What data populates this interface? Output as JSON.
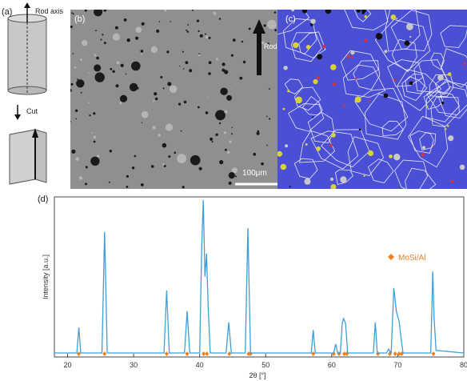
{
  "panels": {
    "a": {
      "label": "(a)",
      "rod_axis_label": "Rod axis",
      "cut_label": "Cut"
    },
    "b": {
      "label": "(b)",
      "rod_axis_label": "Rod axis",
      "scale_bar_label": "100μm"
    },
    "c": {
      "label": "(c)"
    },
    "d": {
      "label": "(d)"
    }
  },
  "chart_data": {
    "type": "line",
    "title": "",
    "xlabel": "2θ [°]",
    "ylabel": "Intensity [a.u.]",
    "xlim": [
      18,
      80
    ],
    "ylim": [
      0,
      100
    ],
    "xticks": [
      20,
      30,
      40,
      50,
      60,
      70,
      80
    ],
    "series": [
      {
        "name": "",
        "color": "#3d9ed8",
        "x": [
          18,
          21.4,
          21.7,
          22.0,
          25.2,
          25.6,
          26.0,
          34.6,
          35.0,
          35.4,
          37.7,
          38.1,
          38.5,
          40.0,
          40.3,
          40.55,
          40.8,
          41.05,
          41.3,
          41.6,
          44.0,
          44.4,
          44.8,
          46.9,
          47.3,
          47.7,
          56.9,
          57.2,
          57.5,
          60.3,
          60.6,
          60.9,
          61.3,
          61.6,
          61.8,
          62.1,
          62.4,
          66.3,
          66.6,
          66.9,
          68.3,
          68.6,
          69.0,
          69.4,
          69.8,
          70.2,
          70.5,
          70.8,
          75.0,
          75.3,
          75.5,
          75.8,
          80
        ],
        "y": [
          0,
          0,
          20,
          0,
          0,
          95,
          0,
          0,
          49,
          0,
          0,
          33,
          0,
          0,
          82,
          120,
          60,
          78,
          35,
          0,
          0,
          24,
          0,
          0,
          98,
          0,
          0,
          18,
          0,
          0,
          7,
          0,
          0,
          24,
          27,
          23,
          0,
          0,
          24,
          0,
          0,
          3,
          0,
          51,
          32,
          25,
          12,
          0,
          0,
          64,
          28,
          2,
          0
        ]
      }
    ],
    "legend": {
      "entries": [
        "MoSi/Al"
      ],
      "position": "right",
      "marker": "diamond",
      "color": "#f08020"
    },
    "reference_marks": {
      "name": "MoSi/Al",
      "color": "#f08020",
      "x": [
        21.7,
        25.6,
        35.0,
        38.1,
        40.6,
        41.1,
        44.5,
        47.4,
        47.7,
        57.2,
        60.3,
        61.1,
        61.9,
        62.3,
        67.0,
        68.8,
        69.6,
        70.2,
        70.6,
        75.4
      ]
    }
  }
}
